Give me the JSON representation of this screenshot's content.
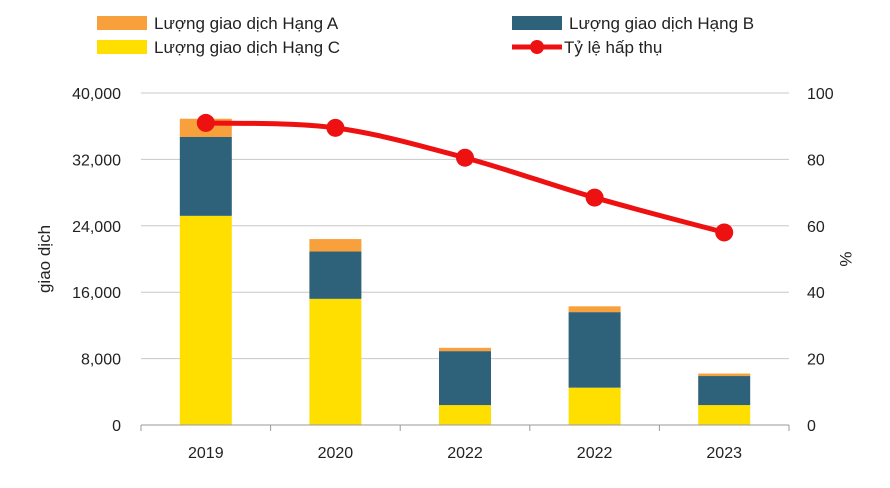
{
  "chart_data": {
    "type": "bar",
    "stacked": true,
    "categories": [
      "2019",
      "2020",
      "2022",
      "2022",
      "2023"
    ],
    "series": [
      {
        "name": "Lượng giao dịch Hạng C",
        "type": "bar",
        "axis": "left",
        "color": "#FFDF00",
        "values": [
          25200,
          15200,
          2400,
          4500,
          2400
        ]
      },
      {
        "name": "Lượng giao dịch Hạng B",
        "type": "bar",
        "axis": "left",
        "color": "#2E627A",
        "values": [
          9500,
          5700,
          6500,
          9100,
          3500
        ]
      },
      {
        "name": "Lượng giao dịch Hạng A",
        "type": "bar",
        "axis": "left",
        "color": "#F7A03C",
        "values": [
          2200,
          1500,
          400,
          700,
          300
        ]
      },
      {
        "name": "Tỷ lệ hấp thụ",
        "type": "line",
        "axis": "right",
        "color": "#EE1111",
        "values": [
          91,
          89.5,
          80.5,
          68.5,
          58
        ]
      }
    ],
    "ylabel": "giao dịch",
    "y2label": "%",
    "ylim": [
      0,
      40000
    ],
    "y2lim": [
      0,
      100
    ],
    "yticks": [
      "0",
      "8,000",
      "16,000",
      "24,000",
      "32,000",
      "40,000"
    ],
    "y2ticks": [
      "0",
      "20",
      "40",
      "60",
      "80",
      "100"
    ],
    "grid": true,
    "legend": {
      "position": "top",
      "order": [
        "Lượng giao dịch Hạng A",
        "Lượng giao dịch Hạng B",
        "Lượng giao dịch Hạng C",
        "Tỷ lệ hấp thụ"
      ]
    }
  }
}
